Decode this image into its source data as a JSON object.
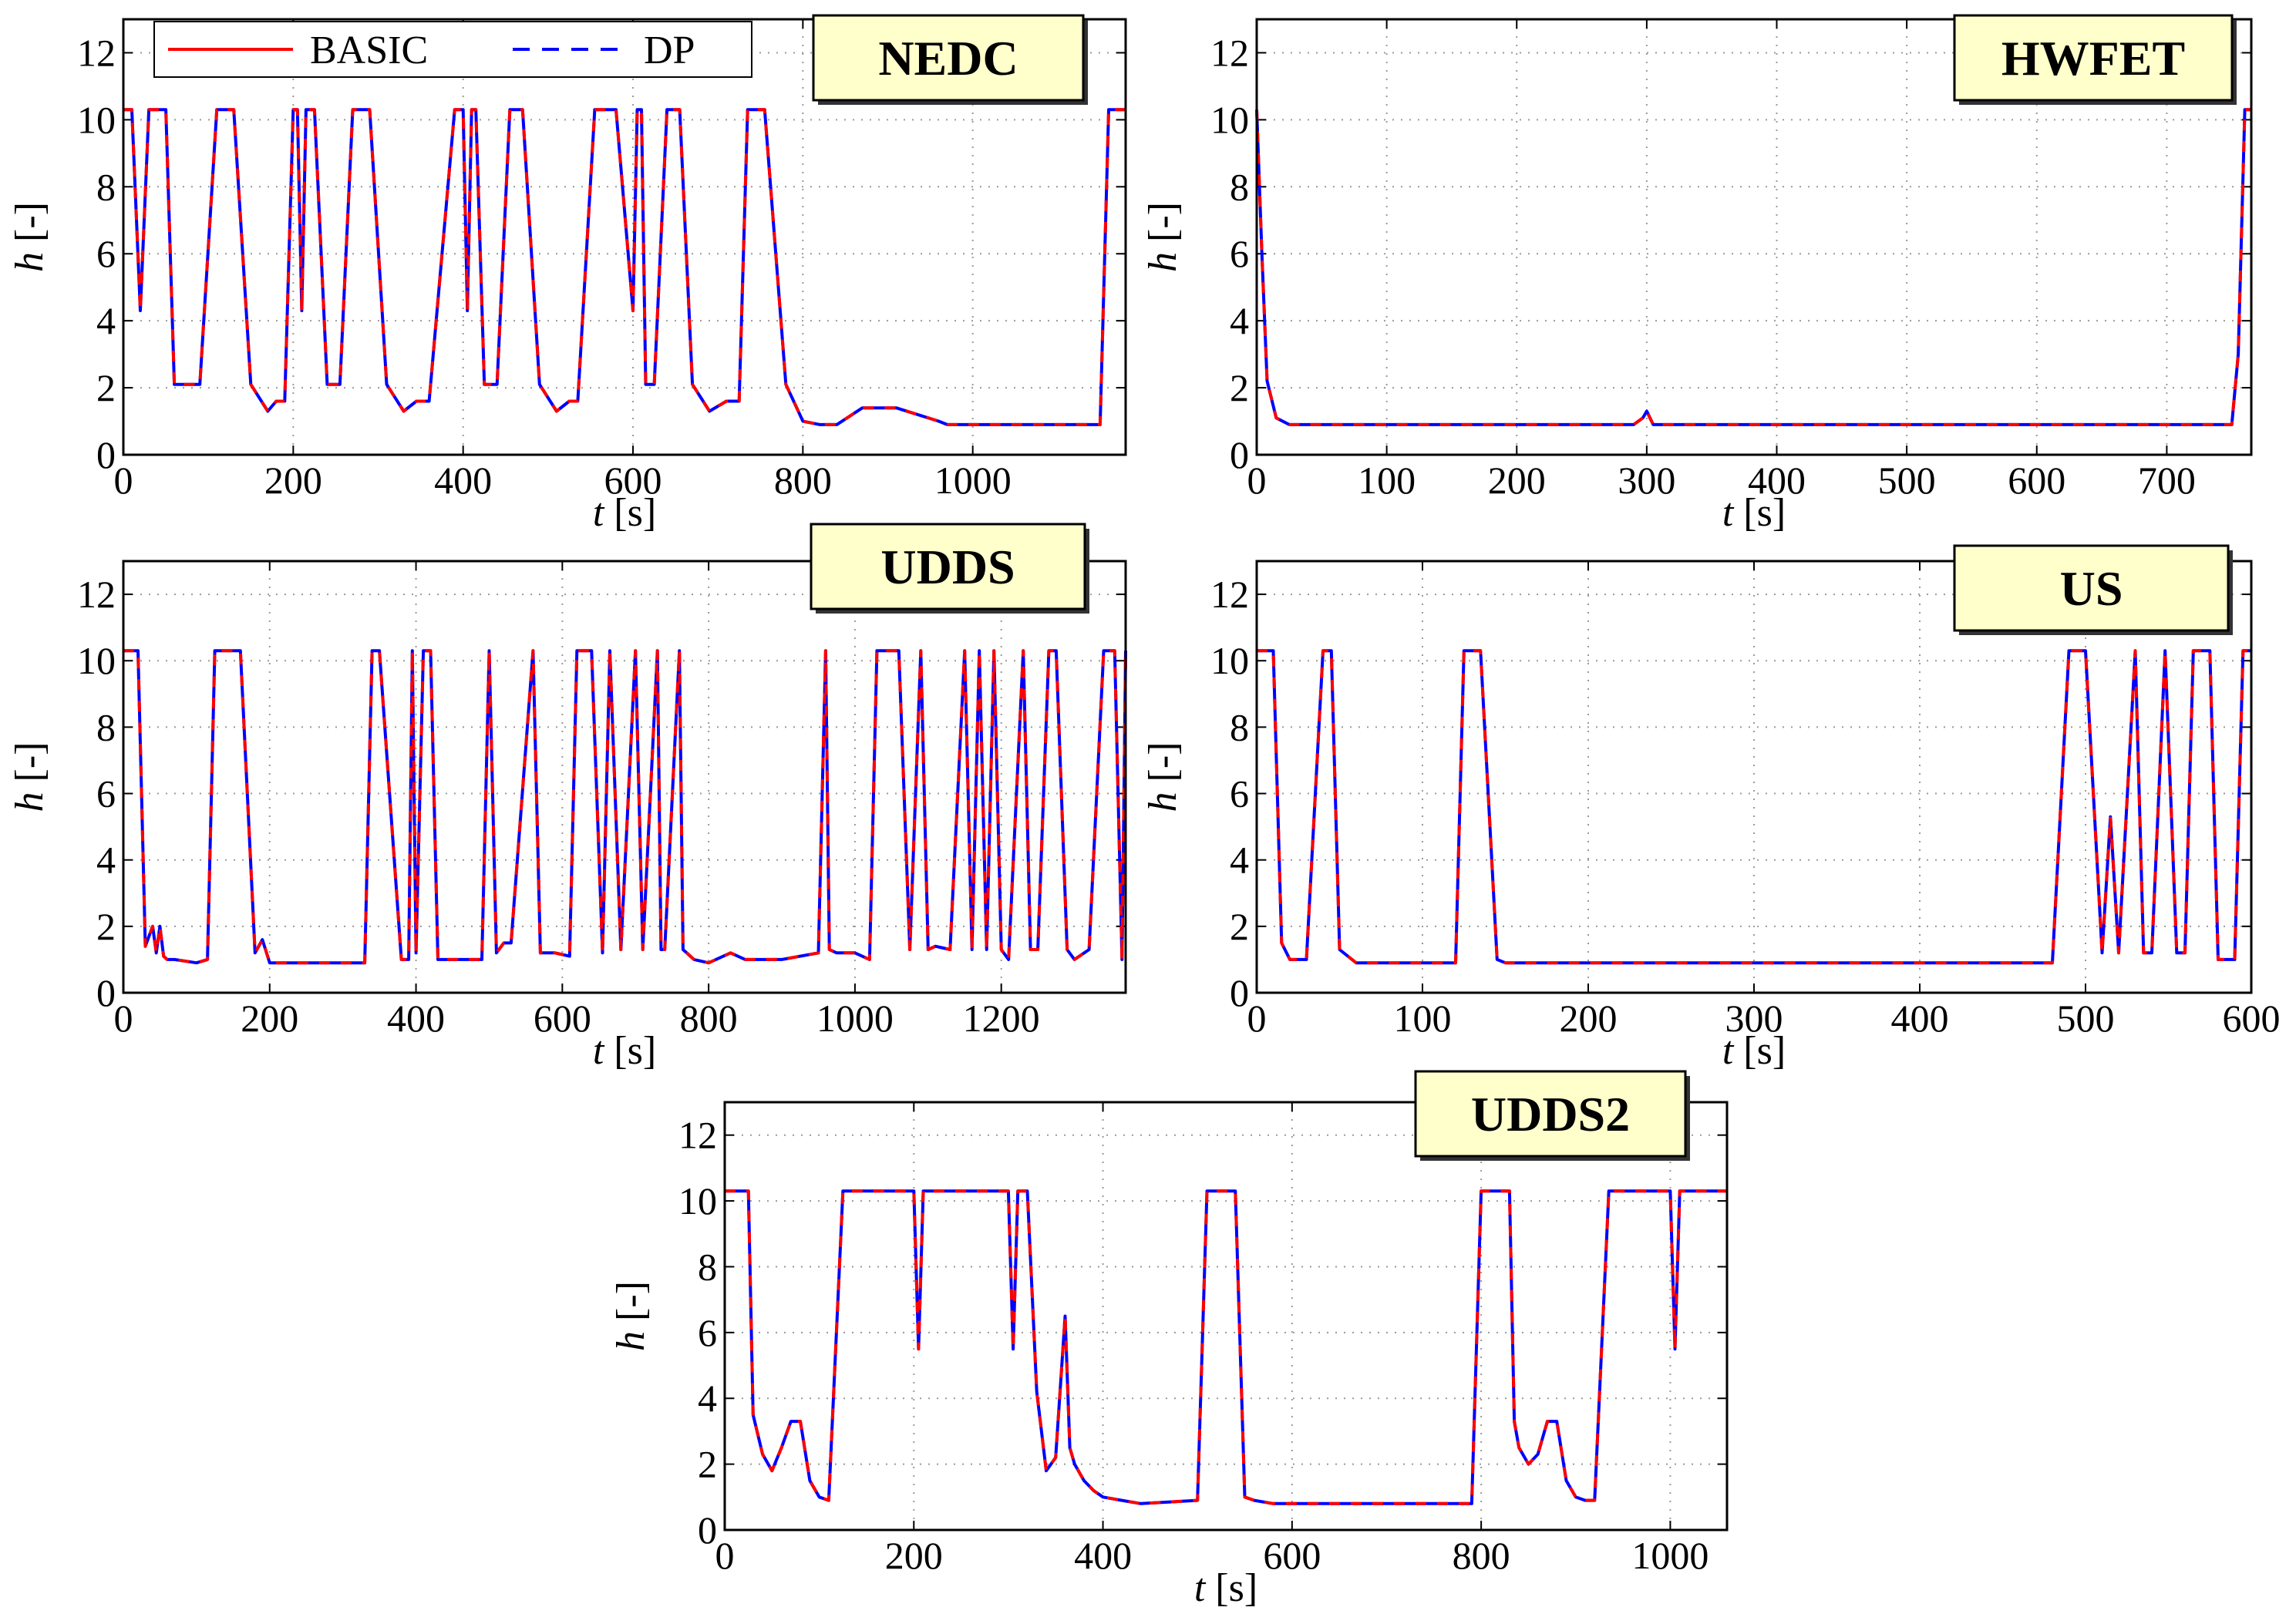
{
  "legend": {
    "series": [
      {
        "name": "BASIC",
        "color": "#ff0000",
        "style": "solid"
      },
      {
        "name": "DP",
        "color": "#0000ff",
        "style": "dashed"
      }
    ]
  },
  "chart_data": [
    {
      "type": "line",
      "title": "NEDC",
      "xlabel": "t [s]",
      "ylabel": "h [-]",
      "xlim": [
        0,
        1180
      ],
      "ylim": [
        0,
        13
      ],
      "xticks": [
        0,
        200,
        400,
        600,
        800,
        1000
      ],
      "yticks": [
        0,
        2,
        4,
        6,
        8,
        10,
        12
      ],
      "grid": true,
      "legend_position": "top-left",
      "series": [
        {
          "name": "BASIC",
          "x": [
            0,
            10,
            20,
            30,
            50,
            60,
            90,
            110,
            130,
            150,
            170,
            180,
            190,
            200,
            205,
            210,
            215,
            225,
            240,
            255,
            270,
            290,
            310,
            330,
            345,
            360,
            390,
            400,
            405,
            410,
            415,
            425,
            440,
            455,
            470,
            490,
            510,
            525,
            535,
            555,
            580,
            600,
            605,
            610,
            615,
            625,
            640,
            655,
            670,
            690,
            710,
            725,
            735,
            755,
            780,
            800,
            820,
            840,
            870,
            900,
            910,
            960,
            970,
            985,
            1000,
            1100,
            1150,
            1160,
            1170,
            1180
          ],
          "y": [
            10.3,
            10.3,
            4.3,
            10.3,
            10.3,
            2.1,
            2.1,
            10.3,
            10.3,
            2.1,
            1.3,
            1.6,
            1.6,
            10.3,
            10.3,
            4.3,
            10.3,
            10.3,
            2.1,
            2.1,
            10.3,
            10.3,
            2.1,
            1.3,
            1.6,
            1.6,
            10.3,
            10.3,
            4.3,
            10.3,
            10.3,
            2.1,
            2.1,
            10.3,
            10.3,
            2.1,
            1.3,
            1.6,
            1.6,
            10.3,
            10.3,
            4.3,
            10.3,
            10.3,
            2.1,
            2.1,
            10.3,
            10.3,
            2.1,
            1.3,
            1.6,
            1.6,
            10.3,
            10.3,
            2.1,
            1.0,
            0.9,
            0.9,
            1.4,
            1.4,
            1.4,
            1.0,
            0.9,
            0.9,
            0.9,
            0.9,
            0.9,
            10.3,
            10.3,
            10.3
          ]
        }
      ]
    },
    {
      "type": "line",
      "title": "HWFET",
      "xlabel": "t [s]",
      "ylabel": "h [-]",
      "xlim": [
        0,
        765
      ],
      "ylim": [
        0,
        13
      ],
      "xticks": [
        0,
        100,
        200,
        300,
        400,
        500,
        600,
        700
      ],
      "yticks": [
        0,
        2,
        4,
        6,
        8,
        10,
        12
      ],
      "grid": true,
      "series": [
        {
          "name": "BASIC",
          "x": [
            0,
            4,
            8,
            15,
            25,
            290,
            297,
            300,
            305,
            750,
            755,
            760,
            765
          ],
          "y": [
            10.3,
            6,
            2.2,
            1.1,
            0.9,
            0.9,
            1.1,
            1.3,
            0.9,
            0.9,
            3,
            10.3,
            10.3
          ]
        }
      ]
    },
    {
      "type": "line",
      "title": "UDDS",
      "xlabel": "t [s]",
      "ylabel": "h [-]",
      "xlim": [
        0,
        1370
      ],
      "ylim": [
        0,
        13
      ],
      "xticks": [
        0,
        200,
        400,
        600,
        800,
        1000,
        1200
      ],
      "yticks": [
        0,
        2,
        4,
        6,
        8,
        10,
        12
      ],
      "grid": true,
      "series": [
        {
          "name": "BASIC",
          "x": [
            0,
            20,
            30,
            40,
            45,
            50,
            55,
            60,
            70,
            100,
            115,
            125,
            160,
            180,
            190,
            200,
            330,
            340,
            350,
            380,
            390,
            395,
            400,
            410,
            420,
            430,
            450,
            490,
            500,
            510,
            520,
            530,
            560,
            570,
            590,
            610,
            620,
            640,
            655,
            665,
            680,
            700,
            710,
            730,
            735,
            740,
            760,
            765,
            770,
            780,
            800,
            830,
            850,
            900,
            950,
            960,
            965,
            975,
            1000,
            1020,
            1030,
            1060,
            1075,
            1090,
            1100,
            1110,
            1130,
            1150,
            1160,
            1170,
            1180,
            1190,
            1200,
            1210,
            1230,
            1240,
            1250,
            1265,
            1275,
            1290,
            1300,
            1320,
            1340,
            1355,
            1365,
            1370
          ],
          "y": [
            10.3,
            10.3,
            1.4,
            2.0,
            1.2,
            2.0,
            1.1,
            1.0,
            1.0,
            0.9,
            1.0,
            10.3,
            10.3,
            1.2,
            1.6,
            0.9,
            0.9,
            10.3,
            10.3,
            1.0,
            1.0,
            10.3,
            1.2,
            10.3,
            10.3,
            1.0,
            1.0,
            1.0,
            10.3,
            1.2,
            1.5,
            1.5,
            10.3,
            1.2,
            1.2,
            1.1,
            10.3,
            10.3,
            1.2,
            10.3,
            1.3,
            10.3,
            1.3,
            10.3,
            1.3,
            1.3,
            10.3,
            1.3,
            1.2,
            1.0,
            0.9,
            1.2,
            1.0,
            1.0,
            1.2,
            10.3,
            1.3,
            1.2,
            1.2,
            1.0,
            10.3,
            10.3,
            1.3,
            10.3,
            1.3,
            1.4,
            1.3,
            10.3,
            1.3,
            10.3,
            1.3,
            10.3,
            1.3,
            1.0,
            10.3,
            1.3,
            1.3,
            10.3,
            10.3,
            1.3,
            1.0,
            1.3,
            10.3,
            10.3,
            1.0,
            10.3
          ]
        }
      ]
    },
    {
      "type": "line",
      "title": "US",
      "xlabel": "t [s]",
      "ylabel": "h [-]",
      "xlim": [
        0,
        600
      ],
      "ylim": [
        0,
        13
      ],
      "xticks": [
        0,
        100,
        200,
        300,
        400,
        500,
        600
      ],
      "yticks": [
        0,
        2,
        4,
        6,
        8,
        10,
        12
      ],
      "grid": true,
      "series": [
        {
          "name": "BASIC",
          "x": [
            0,
            10,
            15,
            20,
            30,
            40,
            45,
            50,
            60,
            120,
            125,
            135,
            145,
            150,
            480,
            490,
            500,
            510,
            515,
            520,
            530,
            535,
            540,
            548,
            555,
            560,
            565,
            575,
            580,
            590,
            595,
            600
          ],
          "y": [
            10.3,
            10.3,
            1.5,
            1.0,
            1.0,
            10.3,
            10.3,
            1.3,
            0.9,
            0.9,
            10.3,
            10.3,
            1.0,
            0.9,
            0.9,
            10.3,
            10.3,
            1.2,
            5.3,
            1.2,
            10.3,
            1.2,
            1.2,
            10.3,
            1.2,
            1.2,
            10.3,
            10.3,
            1.0,
            1.0,
            10.3,
            10.3
          ]
        }
      ]
    },
    {
      "type": "line",
      "title": "UDDS2",
      "xlabel": "t [s]",
      "ylabel": "h [-]",
      "xlim": [
        0,
        1060
      ],
      "ylim": [
        0,
        13
      ],
      "xticks": [
        0,
        200,
        400,
        600,
        800,
        1000
      ],
      "yticks": [
        0,
        2,
        4,
        6,
        8,
        10,
        12
      ],
      "grid": true,
      "series": [
        {
          "name": "BASIC",
          "x": [
            0,
            25,
            30,
            40,
            50,
            60,
            70,
            80,
            90,
            100,
            110,
            125,
            130,
            200,
            205,
            210,
            215,
            300,
            305,
            310,
            320,
            330,
            340,
            350,
            360,
            365,
            370,
            380,
            390,
            400,
            420,
            440,
            500,
            510,
            540,
            550,
            560,
            580,
            790,
            800,
            830,
            835,
            840,
            850,
            860,
            870,
            880,
            890,
            900,
            910,
            920,
            935,
            940,
            1000,
            1005,
            1010,
            1015,
            1060
          ],
          "y": [
            10.3,
            10.3,
            3.5,
            2.3,
            1.8,
            2.5,
            3.3,
            3.3,
            1.5,
            1.0,
            0.9,
            10.3,
            10.3,
            10.3,
            5.5,
            10.3,
            10.3,
            10.3,
            5.5,
            10.3,
            10.3,
            4.2,
            1.8,
            2.2,
            6.5,
            2.5,
            2.0,
            1.5,
            1.2,
            1.0,
            0.9,
            0.8,
            0.9,
            10.3,
            10.3,
            1.0,
            0.9,
            0.8,
            0.8,
            10.3,
            10.3,
            3.3,
            2.5,
            2.0,
            2.3,
            3.3,
            3.3,
            1.5,
            1.0,
            0.9,
            0.9,
            10.3,
            10.3,
            10.3,
            5.5,
            10.3,
            10.3,
            10.3
          ]
        }
      ]
    }
  ]
}
